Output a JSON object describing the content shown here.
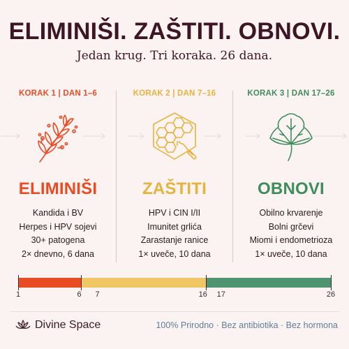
{
  "header": {
    "title": "ELIMINIŠI. ZAŠTITI. OBNOVI.",
    "subtitle": "Jedan krug. Tri koraka. 26 dana."
  },
  "steps": [
    {
      "label": "KORAK 1 | DAN 1–6",
      "icon": "herb-icon",
      "title": "ELIMINIŠI",
      "color": "#e94b25",
      "lines": [
        "Kandida i BV",
        "Herpes i HPV sojevi",
        "30+ patogena",
        "2× dnevno, 6 dana"
      ]
    },
    {
      "label": "KORAK 2 | DAN 7–16",
      "icon": "honeycomb-icon",
      "title": "ZAŠTITI",
      "color": "#e7b33f",
      "lines": [
        "HPV i CIN I/II",
        "Imunitet grlića",
        "Zarastanje ranice",
        "1× uveče, 10 dana"
      ]
    },
    {
      "label": "KORAK 3 | DAN 17–26",
      "icon": "leaf-icon",
      "title": "OBNOVI",
      "color": "#3f8d5d",
      "lines": [
        "Obilno krvarenje",
        "Bolni grčevi",
        "Miomi i endometrioza",
        "1× uveče, 10 dana"
      ]
    }
  ],
  "timeline": {
    "start_day": 1,
    "end_day": 26,
    "segments": [
      {
        "from": 1,
        "to": 6,
        "color": "#e94b25"
      },
      {
        "from": 6,
        "to": 16,
        "color": "#f1c766"
      },
      {
        "from": 16,
        "to": 26,
        "color": "#4f9470"
      }
    ],
    "labels": [
      "1",
      "6",
      "7",
      "16",
      "17",
      "26"
    ]
  },
  "footer": {
    "brand": "Divine Space",
    "brand_icon": "lotus-icon",
    "tagline": "100% Prirodno · Bez antibiotika · Bez hormona"
  }
}
